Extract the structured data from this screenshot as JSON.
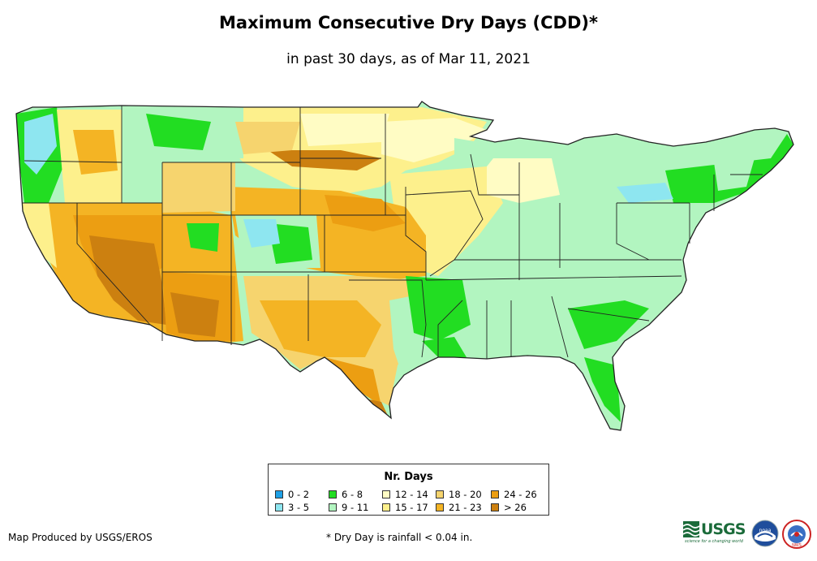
{
  "title": "Maximum Consecutive Dry Days (CDD)*",
  "subtitle": "in past 30 days, as of Mar 11, 2021",
  "legend": {
    "title": "Nr. Days",
    "items": [
      {
        "label": "0 - 2",
        "color": "#1ea0e6"
      },
      {
        "label": "3 - 5",
        "color": "#8ee6f0"
      },
      {
        "label": "6 - 8",
        "color": "#22dd22"
      },
      {
        "label": "9 - 11",
        "color": "#b2f5c0"
      },
      {
        "label": "12 - 14",
        "color": "#fffcc4"
      },
      {
        "label": "15 - 17",
        "color": "#fdf08c"
      },
      {
        "label": "18 - 20",
        "color": "#f6d46e"
      },
      {
        "label": "21 - 23",
        "color": "#f4b424"
      },
      {
        "label": "24 - 26",
        "color": "#ec9e12"
      },
      {
        "label": "> 26",
        "color": "#cc8010"
      }
    ]
  },
  "footer": {
    "credit": "Map Produced by USGS/EROS",
    "note": "* Dry Day is rainfall < 0.04 in."
  },
  "logos": {
    "usgs": "USGS",
    "usgs_tagline": "science for a changing world",
    "noaa": "noaa",
    "nws": "NWS"
  }
}
